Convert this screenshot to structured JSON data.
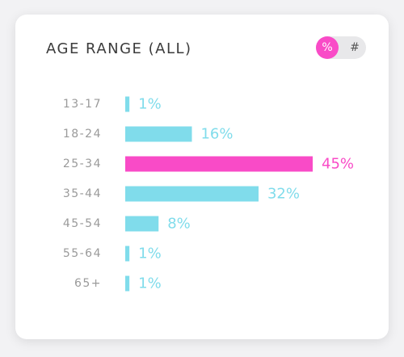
{
  "toggle": {
    "percent_label": "%",
    "count_label": "#",
    "selected": "percent"
  },
  "colors": {
    "bar": "#80dceb",
    "highlight": "#f94bc7",
    "category_text": "#9a9a9a",
    "toggle_active": "#f94bc7"
  },
  "chart_data": {
    "type": "bar",
    "orientation": "horizontal",
    "title": "AGE RANGE (ALL)",
    "categories": [
      "13-17",
      "18-24",
      "25-34",
      "35-44",
      "45-54",
      "55-64",
      "65+"
    ],
    "values": [
      1,
      16,
      45,
      32,
      8,
      1,
      1
    ],
    "value_labels": [
      "1%",
      "16%",
      "45%",
      "32%",
      "8%",
      "1%",
      "1%"
    ],
    "highlight_index": 2,
    "xlim": [
      0,
      45
    ],
    "grid": false,
    "legend": "none"
  }
}
